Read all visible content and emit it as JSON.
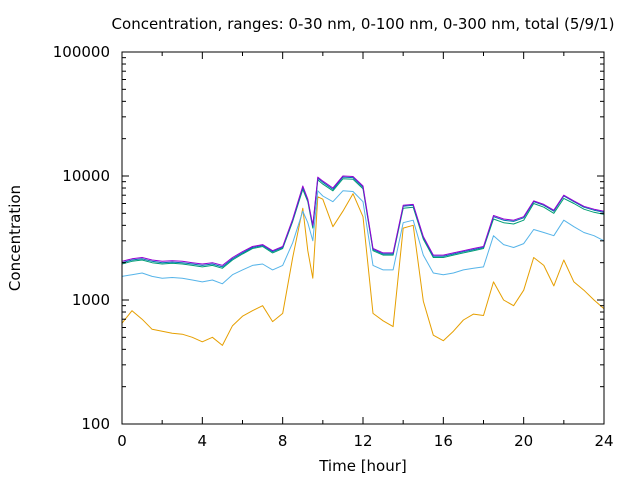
{
  "chart_data": {
    "type": "line",
    "title": "Concentration, ranges: 0-30 nm, 0-100 nm, 0-300 nm, total (5/9/1)",
    "xlabel": "Time [hour]",
    "ylabel": "Concentration",
    "xlim": [
      0,
      24
    ],
    "ylim": [
      100,
      100000
    ],
    "yscale": "log",
    "grid": false,
    "legend": "none",
    "xticks": [
      "0",
      "4",
      "8",
      "12",
      "16",
      "20",
      "24"
    ],
    "yticks": [
      "100",
      "1000",
      "10000",
      "100000"
    ],
    "x": [
      0,
      0.5,
      1,
      1.5,
      2,
      2.5,
      3,
      3.5,
      4,
      4.5,
      5,
      5.5,
      6,
      6.5,
      7,
      7.5,
      8,
      8.5,
      9,
      9.25,
      9.5,
      9.75,
      10,
      10.5,
      11,
      11.5,
      12,
      12.5,
      13,
      13.5,
      14,
      14.5,
      15,
      15.5,
      16,
      16.5,
      17,
      17.5,
      18,
      18.5,
      19,
      19.5,
      20,
      20.5,
      21,
      21.5,
      22,
      22.5,
      23,
      23.5,
      24
    ],
    "series": [
      {
        "color": "#e69f00",
        "values": [
          650,
          820,
          700,
          580,
          560,
          540,
          530,
          500,
          460,
          500,
          430,
          620,
          740,
          820,
          900,
          670,
          780,
          2200,
          5500,
          2500,
          1500,
          6800,
          6500,
          3900,
          5200,
          7200,
          4700,
          780,
          680,
          610,
          3800,
          4000,
          980,
          520,
          470,
          560,
          690,
          770,
          750,
          1400,
          1000,
          900,
          1200,
          2200,
          1900,
          1300,
          2100,
          1400,
          1200,
          1000,
          850
        ]
      },
      {
        "color": "#56b4e9",
        "values": [
          1550,
          1600,
          1650,
          1550,
          1500,
          1520,
          1500,
          1450,
          1400,
          1450,
          1350,
          1600,
          1750,
          1900,
          1950,
          1750,
          1900,
          2900,
          5200,
          4200,
          3000,
          7600,
          6900,
          6200,
          7600,
          7500,
          6200,
          1900,
          1750,
          1750,
          4200,
          4400,
          2300,
          1650,
          1600,
          1650,
          1750,
          1800,
          1850,
          3300,
          2800,
          2650,
          2850,
          3700,
          3500,
          3300,
          4400,
          3900,
          3500,
          3300,
          3000
        ]
      },
      {
        "color": "#009e73",
        "values": [
          1950,
          2050,
          2100,
          2000,
          1950,
          1980,
          1950,
          1900,
          1850,
          1900,
          1800,
          2100,
          2350,
          2600,
          2700,
          2400,
          2600,
          4300,
          7800,
          6200,
          3800,
          9300,
          8600,
          7600,
          9500,
          9400,
          7900,
          2500,
          2300,
          2300,
          5500,
          5600,
          3100,
          2200,
          2200,
          2300,
          2400,
          2500,
          2600,
          4500,
          4200,
          4100,
          4400,
          6000,
          5600,
          5000,
          6600,
          6000,
          5400,
          5100,
          4900
        ]
      },
      {
        "color": "#0072b2",
        "values": [
          2000,
          2100,
          2150,
          2050,
          2000,
          2020,
          2000,
          1950,
          1900,
          1950,
          1850,
          2150,
          2400,
          2650,
          2750,
          2450,
          2650,
          4400,
          8100,
          6400,
          3900,
          9600,
          8900,
          7800,
          9800,
          9700,
          8100,
          2550,
          2350,
          2350,
          5700,
          5800,
          3200,
          2250,
          2250,
          2350,
          2450,
          2550,
          2650,
          4700,
          4400,
          4300,
          4600,
          6200,
          5800,
          5200,
          6900,
          6200,
          5600,
          5300,
          5100
        ]
      },
      {
        "color": "#9400d3",
        "values": [
          2050,
          2150,
          2200,
          2100,
          2050,
          2070,
          2050,
          2000,
          1950,
          2000,
          1900,
          2200,
          2450,
          2700,
          2800,
          2500,
          2700,
          4500,
          8300,
          6500,
          4000,
          9800,
          9100,
          8000,
          10000,
          9900,
          8300,
          2600,
          2400,
          2400,
          5800,
          5900,
          3250,
          2300,
          2300,
          2400,
          2500,
          2600,
          2700,
          4800,
          4500,
          4400,
          4700,
          6300,
          5900,
          5300,
          7000,
          6300,
          5700,
          5400,
          5200
        ]
      }
    ]
  }
}
